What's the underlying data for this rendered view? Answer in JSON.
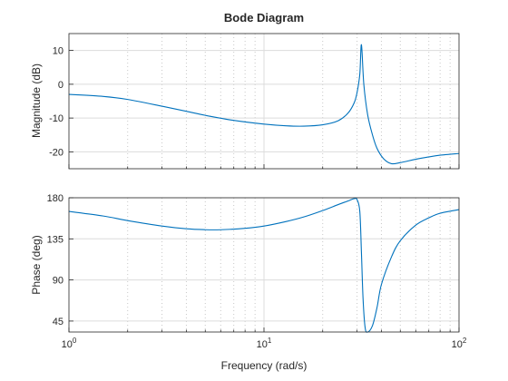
{
  "chart_data": {
    "type": "line",
    "title": "Bode Diagram",
    "xlabel": "Frequency (rad/s)",
    "xscale": "log",
    "xlim": [
      1,
      100
    ],
    "x_ticks": [
      {
        "base": "10",
        "exp": "0"
      },
      {
        "base": "10",
        "exp": "1"
      },
      {
        "base": "10",
        "exp": "2"
      }
    ],
    "line_color": "#0072BD",
    "grid": true,
    "subplots": [
      {
        "name": "magnitude",
        "ylabel": "Magnitude (dB)",
        "ylim": [
          -25,
          15
        ],
        "yticks": [
          -20,
          -10,
          0,
          10
        ],
        "ytick_labels": [
          "-20",
          "-10",
          "0",
          "10"
        ],
        "x": [
          1,
          1.5,
          2,
          3,
          4,
          5,
          7,
          10,
          13,
          16,
          20,
          24,
          27,
          29,
          30,
          31,
          31.6,
          32.5,
          34,
          36,
          38,
          41,
          45,
          50,
          60,
          70,
          80,
          100
        ],
        "y": [
          -3,
          -3.6,
          -4.5,
          -6.5,
          -8.0,
          -9.2,
          -10.7,
          -11.8,
          -12.3,
          -12.4,
          -12.0,
          -10.8,
          -8.5,
          -5.5,
          -2.5,
          3,
          11.7,
          0,
          -9,
          -15,
          -19,
          -22,
          -23.5,
          -23.2,
          -22.2,
          -21.5,
          -21.0,
          -20.5
        ]
      },
      {
        "name": "phase",
        "ylabel": "Phase (deg)",
        "ylim": [
          33,
          180
        ],
        "yticks": [
          45,
          90,
          135,
          180
        ],
        "ytick_labels": [
          "45",
          "90",
          "135",
          "180"
        ],
        "x": [
          1,
          1.5,
          2,
          3,
          4,
          5,
          6,
          8,
          10,
          13,
          16,
          20,
          24,
          27,
          29,
          30,
          31,
          31.6,
          32.2,
          33,
          34,
          36,
          38,
          40,
          45,
          50,
          60,
          70,
          80,
          100
        ],
        "y": [
          165,
          160,
          155,
          149,
          146,
          145,
          145,
          146.5,
          149,
          154,
          159,
          166,
          172.5,
          176.5,
          179,
          178,
          165,
          120,
          70,
          38,
          33,
          40,
          60,
          85,
          115,
          133,
          150,
          158,
          163,
          167
        ]
      }
    ]
  }
}
